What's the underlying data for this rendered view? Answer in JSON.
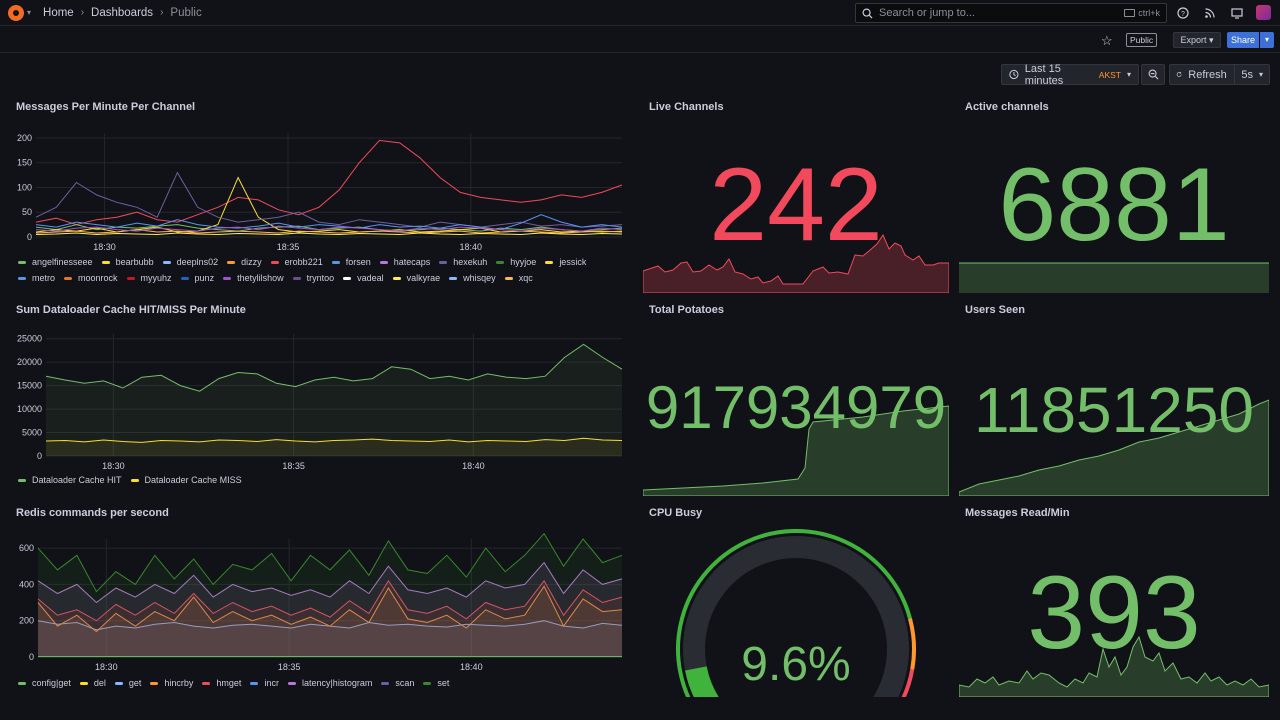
{
  "breadcrumb": {
    "home": "Home",
    "dashboards": "Dashboards",
    "current": "Public"
  },
  "search": {
    "placeholder": "Search or jump to...",
    "shortcut": "ctrl+k"
  },
  "toolbar": {
    "public_badge": "Public",
    "export_label": "Export",
    "share_label": "Share"
  },
  "time": {
    "range_label": "Last 15 minutes",
    "timezone": "AKST",
    "refresh_label": "Refresh",
    "interval": "5s"
  },
  "colors": {
    "green": "#73bf69",
    "red": "#f2495c",
    "orange": "#ff9830",
    "blue": "#3d71d9",
    "background": "#111217"
  },
  "panels": {
    "messages_per_minute": {
      "title": "Messages Per Minute Per Channel",
      "legend": [
        {
          "name": "angelfinesseee",
          "color": "#73bf69"
        },
        {
          "name": "bearbubb",
          "color": "#fade2a"
        },
        {
          "name": "deeplns02",
          "color": "#8ab8ff"
        },
        {
          "name": "dizzy",
          "color": "#ff9830"
        },
        {
          "name": "erobb221",
          "color": "#f2495c"
        },
        {
          "name": "forsen",
          "color": "#5794f2"
        },
        {
          "name": "hatecaps",
          "color": "#b877d9"
        },
        {
          "name": "hexekuh",
          "color": "#705da0"
        },
        {
          "name": "hyyjoe",
          "color": "#37872d"
        },
        {
          "name": "jessick",
          "color": "#fade2a"
        },
        {
          "name": "metro",
          "color": "#5794f2"
        },
        {
          "name": "moonrock",
          "color": "#e0752d"
        },
        {
          "name": "myyuhz",
          "color": "#c4162a"
        },
        {
          "name": "punz",
          "color": "#1f60c4"
        },
        {
          "name": "thetylilshow",
          "color": "#a352cc"
        },
        {
          "name": "tryntoo",
          "color": "#6e4f8b"
        },
        {
          "name": "vadeal",
          "color": "#ffffff"
        },
        {
          "name": "valkyrae",
          "color": "#ffee52"
        },
        {
          "name": "whisqey",
          "color": "#8ab8ff"
        },
        {
          "name": "xqc",
          "color": "#ffb357"
        }
      ]
    },
    "dataloader_cache": {
      "title": "Sum Dataloader Cache HIT/MISS Per Minute",
      "legend": [
        {
          "name": "Dataloader Cache HIT",
          "color": "#73bf69"
        },
        {
          "name": "Dataloader Cache MISS",
          "color": "#fade2a"
        }
      ]
    },
    "redis_commands": {
      "title": "Redis commands per second",
      "legend": [
        {
          "name": "config|get",
          "color": "#73bf69"
        },
        {
          "name": "del",
          "color": "#fade2a"
        },
        {
          "name": "get",
          "color": "#8ab8ff"
        },
        {
          "name": "hincrby",
          "color": "#ff9830"
        },
        {
          "name": "hmget",
          "color": "#f2495c"
        },
        {
          "name": "incr",
          "color": "#5794f2"
        },
        {
          "name": "latency|histogram",
          "color": "#b877d9"
        },
        {
          "name": "scan",
          "color": "#705da0"
        },
        {
          "name": "set",
          "color": "#37872d"
        }
      ]
    },
    "live_channels": {
      "title": "Live Channels",
      "value": "242",
      "color": "#f2495c"
    },
    "active_channels": {
      "title": "Active channels",
      "value": "6881",
      "color": "#73bf69"
    },
    "total_potatoes": {
      "title": "Total Potatoes",
      "value": "917934979",
      "color": "#73bf69"
    },
    "users_seen": {
      "title": "Users Seen",
      "value": "11851250",
      "color": "#73bf69"
    },
    "cpu_busy": {
      "title": "CPU Busy",
      "value": "9.6%",
      "fraction": 0.096,
      "color": "#73bf69"
    },
    "messages_read": {
      "title": "Messages Read/Min",
      "value": "393",
      "color": "#73bf69"
    }
  },
  "chart_data": [
    {
      "type": "line",
      "title": "Messages Per Minute Per Channel",
      "x_ticks": [
        "18:30",
        "18:35",
        "18:40"
      ],
      "y_ticks": [
        0,
        50,
        100,
        150,
        200
      ],
      "ylim": [
        0,
        210
      ],
      "series": [
        {
          "name": "erobb221",
          "values": [
            30,
            38,
            25,
            35,
            40,
            50,
            35,
            30,
            45,
            60,
            80,
            75,
            55,
            45,
            60,
            95,
            150,
            195,
            190,
            160,
            120,
            90,
            80,
            75,
            70,
            75,
            85,
            80,
            90,
            105
          ]
        },
        {
          "name": "angelfinesseee",
          "values": [
            20,
            15,
            25,
            15,
            20,
            18,
            22,
            25,
            18,
            15,
            12,
            18,
            20,
            22,
            15,
            18,
            20,
            15,
            12,
            15,
            18,
            15,
            12,
            18,
            15,
            20,
            15,
            12,
            15,
            18
          ]
        },
        {
          "name": "bearbubb",
          "values": [
            10,
            15,
            12,
            18,
            10,
            15,
            20,
            10,
            12,
            25,
            120,
            40,
            15,
            10,
            12,
            15,
            10,
            12,
            15,
            10,
            12,
            15,
            18,
            10,
            12,
            15,
            10,
            12,
            10,
            12
          ]
        },
        {
          "name": "hexekuh",
          "values": [
            40,
            60,
            110,
            85,
            70,
            60,
            40,
            130,
            60,
            40,
            30,
            35,
            40,
            50,
            30,
            25,
            35,
            30,
            25,
            20,
            30,
            25,
            20,
            25,
            30,
            22,
            25,
            20,
            22,
            25
          ]
        },
        {
          "name": "forsen",
          "values": [
            25,
            20,
            30,
            25,
            20,
            28,
            22,
            35,
            25,
            20,
            18,
            22,
            28,
            20,
            25,
            22,
            18,
            25,
            20,
            22,
            18,
            25,
            20,
            15,
            28,
            45,
            30,
            20,
            25,
            20
          ]
        },
        {
          "name": "xqc",
          "values": [
            8,
            10,
            12,
            8,
            10,
            15,
            10,
            12,
            8,
            10,
            12,
            10,
            8,
            12,
            10,
            8,
            10,
            12,
            10,
            8,
            10,
            12,
            8,
            10,
            12,
            10,
            8,
            10,
            12,
            10
          ]
        },
        {
          "name": "valkyrae",
          "values": [
            5,
            6,
            8,
            5,
            7,
            6,
            5,
            8,
            6,
            5,
            7,
            6,
            5,
            8,
            6,
            5,
            7,
            6,
            5,
            8,
            6,
            5,
            7,
            6,
            5,
            8,
            6,
            5,
            7,
            6
          ]
        },
        {
          "name": "thetylilshow",
          "values": [
            15,
            12,
            18,
            20,
            15,
            12,
            18,
            15,
            12,
            18,
            20,
            15,
            22,
            18,
            15,
            20,
            18,
            15,
            12,
            18,
            15,
            20,
            18,
            15,
            12,
            18,
            15,
            12,
            18,
            15
          ]
        }
      ]
    },
    {
      "type": "area",
      "title": "Sum Dataloader Cache HIT/MISS Per Minute",
      "x_ticks": [
        "18:30",
        "18:35",
        "18:40"
      ],
      "y_ticks": [
        0,
        5000,
        10000,
        15000,
        20000,
        25000
      ],
      "ylim": [
        0,
        26000
      ],
      "series": [
        {
          "name": "Dataloader Cache HIT",
          "values": [
            17000,
            16200,
            15500,
            16000,
            14500,
            16800,
            17200,
            15000,
            13800,
            16500,
            17800,
            17500,
            15500,
            14800,
            16200,
            16800,
            16000,
            16500,
            19000,
            18500,
            16500,
            17000,
            16200,
            17500,
            16800,
            16500,
            17000,
            21000,
            23800,
            21000,
            18500
          ]
        },
        {
          "name": "Dataloader Cache MISS",
          "values": [
            3200,
            3300,
            3000,
            3400,
            3100,
            2900,
            3300,
            3200,
            3000,
            3400,
            3300,
            3100,
            3500,
            3200,
            3000,
            3300,
            3400,
            3600,
            3300,
            3200,
            3100,
            3400,
            3000,
            3300,
            3200,
            3100,
            3500,
            3300,
            3800,
            3400,
            3300
          ]
        }
      ]
    },
    {
      "type": "area",
      "title": "Redis commands per second",
      "x_ticks": [
        "18:30",
        "18:35",
        "18:40"
      ],
      "y_ticks": [
        0,
        200,
        400,
        600
      ],
      "ylim": [
        0,
        650
      ],
      "series": [
        {
          "name": "get",
          "values": [
            200,
            180,
            190,
            150,
            170,
            160,
            180,
            190,
            170,
            160,
            175,
            180,
            170,
            160,
            180,
            170,
            160,
            190,
            175,
            180,
            170,
            165,
            180,
            175,
            170,
            180,
            200,
            170,
            160,
            185,
            175
          ]
        },
        {
          "name": "hincrby",
          "values": [
            300,
            170,
            230,
            140,
            240,
            170,
            250,
            200,
            330,
            190,
            250,
            200,
            230,
            180,
            220,
            170,
            260,
            190,
            380,
            210,
            190,
            230,
            160,
            260,
            210,
            230,
            390,
            170,
            320,
            250,
            260
          ]
        },
        {
          "name": "hmget",
          "values": [
            320,
            230,
            260,
            200,
            290,
            230,
            300,
            240,
            350,
            240,
            300,
            250,
            280,
            230,
            270,
            220,
            310,
            240,
            420,
            260,
            240,
            280,
            210,
            300,
            260,
            280,
            420,
            230,
            370,
            300,
            330
          ]
        },
        {
          "name": "latency|histogram",
          "values": [
            420,
            350,
            400,
            300,
            380,
            330,
            400,
            350,
            450,
            330,
            400,
            360,
            380,
            340,
            370,
            330,
            420,
            350,
            500,
            370,
            350,
            380,
            330,
            420,
            380,
            400,
            520,
            350,
            480,
            400,
            430
          ]
        },
        {
          "name": "set",
          "values": [
            600,
            480,
            560,
            360,
            470,
            400,
            560,
            430,
            540,
            400,
            510,
            480,
            570,
            420,
            560,
            480,
            590,
            450,
            640,
            480,
            460,
            560,
            440,
            600,
            470,
            560,
            680,
            500,
            650,
            520,
            560
          ]
        },
        {
          "name": "config|get",
          "values": [
            2,
            2,
            2,
            2,
            2,
            2,
            2,
            2,
            2,
            2,
            2,
            2,
            2,
            2,
            2,
            2,
            2,
            2,
            2,
            2,
            2,
            2,
            2,
            2,
            2,
            2,
            2,
            2,
            2,
            2,
            2
          ]
        }
      ]
    }
  ]
}
